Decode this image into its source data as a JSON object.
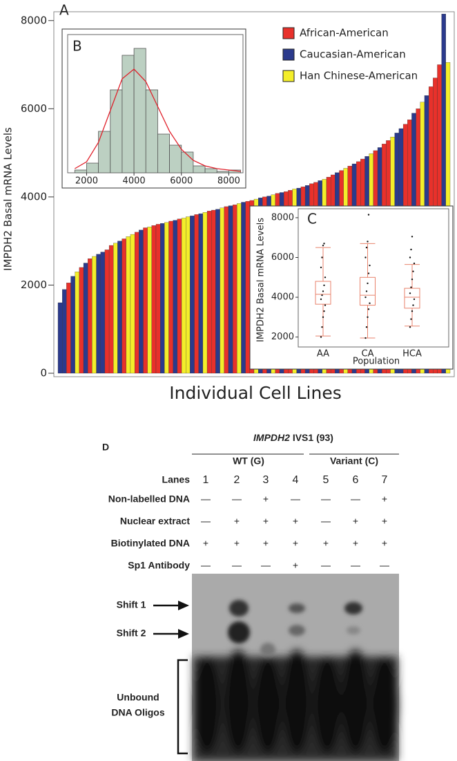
{
  "chart_data": [
    {
      "type": "bar",
      "panel_label": "A",
      "ylabel": "IMPDH2 Basal mRNA Levels",
      "xlabel": "Individual Cell Lines",
      "ylim": [
        0,
        8200
      ],
      "yticks": [
        0,
        2000,
        4000,
        6000,
        8000
      ],
      "series": [
        {
          "name": "African-American",
          "color": "#e8312b"
        },
        {
          "name": "Caucasian-American",
          "color": "#2b3a8c"
        },
        {
          "name": "Han Chinese-American",
          "color": "#f4ee2a"
        }
      ],
      "values": [
        1600,
        1900,
        2050,
        2200,
        2300,
        2400,
        2500,
        2600,
        2650,
        2700,
        2750,
        2800,
        2900,
        2950,
        3000,
        3050,
        3100,
        3150,
        3200,
        3250,
        3300,
        3320,
        3350,
        3380,
        3400,
        3420,
        3450,
        3470,
        3500,
        3520,
        3550,
        3570,
        3600,
        3620,
        3650,
        3680,
        3700,
        3720,
        3750,
        3780,
        3800,
        3820,
        3850,
        3880,
        3900,
        3920,
        3950,
        3980,
        4000,
        4020,
        4050,
        4080,
        4100,
        4120,
        4150,
        4180,
        4200,
        4230,
        4260,
        4300,
        4330,
        4370,
        4400,
        4450,
        4500,
        4550,
        4600,
        4650,
        4700,
        4750,
        4800,
        4860,
        4920,
        4980,
        5050,
        5120,
        5200,
        5280,
        5360,
        5450,
        5550,
        5650,
        5750,
        5900,
        6000,
        6150,
        6300,
        6500,
        6700,
        7000,
        8150,
        7050
      ],
      "series_index": [
        1,
        1,
        0,
        1,
        2,
        0,
        1,
        0,
        2,
        1,
        1,
        0,
        0,
        2,
        1,
        0,
        2,
        2,
        0,
        1,
        0,
        2,
        0,
        0,
        1,
        2,
        0,
        1,
        0,
        2,
        2,
        1,
        0,
        1,
        2,
        0,
        0,
        1,
        2,
        0,
        1,
        0,
        2,
        1,
        0,
        0,
        2,
        1,
        0,
        1,
        2,
        0,
        1,
        0,
        0,
        2,
        1,
        0,
        1,
        0,
        0,
        1,
        2,
        0,
        0,
        1,
        0,
        2,
        0,
        1,
        0,
        0,
        1,
        2,
        0,
        1,
        0,
        0,
        2,
        1,
        1,
        0,
        0,
        1,
        0,
        2,
        1,
        0,
        0,
        0,
        1,
        2
      ]
    },
    {
      "type": "histogram",
      "panel_label": "B",
      "color": "#bcd0c2",
      "curve_color": "#e0202a",
      "bins": [
        1500,
        2000,
        2500,
        3000,
        3500,
        4000,
        4500,
        5000,
        5500,
        6000,
        6500,
        7000,
        7500,
        8000,
        8500
      ],
      "values": [
        2,
        7,
        30,
        60,
        85,
        90,
        60,
        28,
        20,
        15,
        5,
        3,
        1,
        2
      ],
      "curve": {
        "x": [
          1500,
          2000,
          2500,
          3000,
          3500,
          4000,
          4500,
          5000,
          5500,
          6000,
          6500,
          7000,
          7500,
          8000,
          8500
        ],
        "y": [
          3,
          8,
          22,
          45,
          68,
          75,
          66,
          48,
          30,
          17,
          9,
          5,
          3,
          2,
          1
        ]
      },
      "xlim": [
        1200,
        8600
      ],
      "xticks": [
        2000,
        4000,
        6000,
        8000
      ],
      "ylim": [
        0,
        100
      ]
    },
    {
      "type": "box",
      "panel_label": "C",
      "ylabel": "IMPDH2 Basal mRNA Levels",
      "xlabel": "Population",
      "color": "#e8826b",
      "categories": [
        "AA",
        "CA",
        "HCA"
      ],
      "ylim": [
        1500,
        8450
      ],
      "yticks": [
        2000,
        4000,
        6000,
        8000
      ],
      "boxes": [
        {
          "whislo": 2050,
          "q1": 3650,
          "med": 4150,
          "q3": 4800,
          "whishi": 6500,
          "points": [
            2000,
            2500,
            3000,
            3300,
            3600,
            3900,
            4100,
            4300,
            4600,
            5000,
            5500,
            6000,
            6600,
            6700
          ]
        },
        {
          "whislo": 1950,
          "q1": 3600,
          "med": 4100,
          "q3": 5000,
          "whishi": 6700,
          "points": [
            1950,
            2500,
            3000,
            3400,
            3700,
            4000,
            4300,
            4700,
            5200,
            5600,
            6000,
            6500,
            6800,
            8150
          ]
        },
        {
          "whislo": 2550,
          "q1": 3450,
          "med": 4000,
          "q3": 4450,
          "whishi": 5650,
          "points": [
            2500,
            2900,
            3300,
            3600,
            3900,
            4200,
            4500,
            4900,
            5300,
            5700,
            6000,
            6400,
            7050
          ]
        }
      ]
    }
  ],
  "panel_d": {
    "label": "D",
    "title_gene": "IMPDH2",
    "title_rest": "IVS1 (93)",
    "groups": [
      "WT (G)",
      "Variant (C)"
    ],
    "lanes_label": "Lanes",
    "lanes": [
      "1",
      "2",
      "3",
      "4",
      "5",
      "6",
      "7"
    ],
    "rows": [
      {
        "label": "Non-labelled DNA",
        "marks": [
          "—",
          "—",
          "+",
          "—",
          "—",
          "—",
          "+"
        ]
      },
      {
        "label": "Nuclear extract",
        "marks": [
          "—",
          "+",
          "+",
          "+",
          "—",
          "+",
          "+"
        ]
      },
      {
        "label": "Biotinylated DNA",
        "marks": [
          "+",
          "+",
          "+",
          "+",
          "+",
          "+",
          "+"
        ]
      },
      {
        "label": "Sp1 Antibody",
        "marks": [
          "—",
          "—",
          "—",
          "+",
          "—",
          "—",
          "—"
        ]
      }
    ],
    "shift1": "Shift 1",
    "shift2": "Shift 2",
    "unbound_1": "Unbound",
    "unbound_2": "DNA Oligos"
  }
}
